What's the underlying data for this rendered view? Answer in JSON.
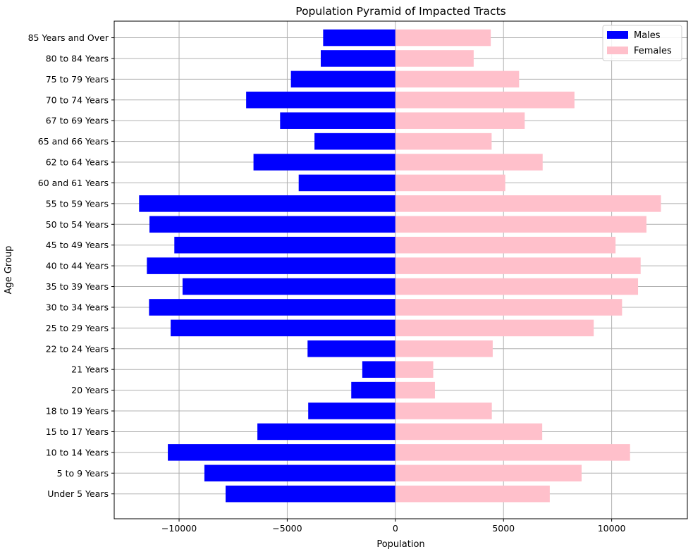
{
  "chart_data": {
    "type": "bar",
    "orientation": "horizontal",
    "title": "Population Pyramid of Impacted Tracts",
    "xlabel": "Population",
    "ylabel": "Age Group",
    "xlim": [
      -13000,
      13500
    ],
    "xticks": [
      -10000,
      -5000,
      0,
      5000,
      10000
    ],
    "xtick_labels": [
      "−10000",
      "−5000",
      "0",
      "5000",
      "10000"
    ],
    "grid": true,
    "legend_position": "top-right",
    "categories": [
      "Under 5 Years",
      "5 to 9 Years",
      "10 to 14 Years",
      "15 to 17 Years",
      "18 to 19 Years",
      "20 Years",
      "21 Years",
      "22 to 24 Years",
      "25 to 29 Years",
      "30 to 34 Years",
      "35 to 39 Years",
      "40 to 44 Years",
      "45 to 49 Years",
      "50 to 54 Years",
      "55 to 59 Years",
      "60 and 61 Years",
      "62 to 64 Years",
      "65 and 66 Years",
      "67 to 69 Years",
      "70 to 74 Years",
      "75 to 79 Years",
      "80 to 84 Years",
      "85 Years and Over"
    ],
    "series": [
      {
        "name": "Males",
        "color": "#0000ff",
        "values": [
          -7850,
          -8830,
          -10520,
          -6380,
          -4030,
          -2040,
          -1530,
          -4060,
          -10390,
          -11390,
          -9840,
          -11490,
          -10220,
          -11370,
          -11850,
          -4470,
          -6560,
          -3740,
          -5330,
          -6900,
          -4830,
          -3450,
          -3340
        ]
      },
      {
        "name": "Females",
        "color": "#ffc0cb",
        "values": [
          7140,
          8610,
          10850,
          6790,
          4460,
          1830,
          1750,
          4500,
          9170,
          10480,
          11220,
          11340,
          10180,
          11610,
          12280,
          5080,
          6810,
          4450,
          5980,
          8280,
          5720,
          3620,
          4410
        ]
      }
    ]
  }
}
